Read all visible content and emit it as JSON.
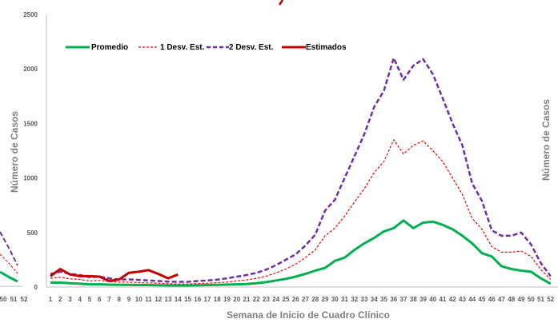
{
  "chart_data": {
    "type": "line",
    "title": "",
    "xlabel": "Semana de Inicio de Cuadro Clínico",
    "ylabel": "Número de Casos",
    "ylim": [
      0,
      2500
    ],
    "y_ticks": [
      "0",
      "500",
      "1000",
      "1500",
      "2000",
      "2500"
    ],
    "x_ticks": [
      "1",
      "2",
      "3",
      "4",
      "5",
      "6",
      "7",
      "8",
      "9",
      "10",
      "11",
      "12",
      "13",
      "14",
      "15",
      "16",
      "17",
      "18",
      "19",
      "20",
      "21",
      "22",
      "23",
      "24",
      "25",
      "26",
      "27",
      "28",
      "29",
      "30",
      "31",
      "32",
      "33",
      "34",
      "35",
      "36",
      "37",
      "38",
      "39",
      "40",
      "41",
      "42",
      "43",
      "44",
      "45",
      "46",
      "47",
      "48",
      "49",
      "50",
      "51",
      "52"
    ],
    "left_partial_ticks": [
      "50",
      "51",
      "52"
    ],
    "grid": false,
    "legend_position": "top-left",
    "series": [
      {
        "name": "Promedio",
        "color": "#00b050",
        "style": "solid",
        "values": [
          40,
          40,
          35,
          30,
          25,
          25,
          22,
          20,
          20,
          18,
          18,
          17,
          15,
          15,
          15,
          17,
          18,
          20,
          22,
          25,
          28,
          35,
          45,
          60,
          75,
          95,
          120,
          150,
          175,
          240,
          270,
          340,
          400,
          450,
          510,
          540,
          610,
          540,
          590,
          600,
          570,
          530,
          470,
          400,
          310,
          280,
          190,
          165,
          150,
          140,
          80,
          30
        ]
      },
      {
        "name": "1 Desv. Est.",
        "color": "#ff0000",
        "style": "dashed",
        "values": [
          80,
          90,
          75,
          70,
          55,
          60,
          50,
          45,
          45,
          40,
          38,
          35,
          30,
          28,
          28,
          32,
          35,
          40,
          45,
          55,
          65,
          80,
          100,
          130,
          165,
          210,
          270,
          340,
          470,
          540,
          650,
          780,
          900,
          1050,
          1150,
          1350,
          1220,
          1300,
          1340,
          1250,
          1150,
          1000,
          850,
          630,
          530,
          370,
          320,
          320,
          330,
          280,
          160,
          70
        ]
      },
      {
        "name": "2 Desv. Est.",
        "color": "#7030a0",
        "style": "dashed",
        "values": [
          120,
          140,
          120,
          110,
          90,
          95,
          80,
          70,
          70,
          65,
          60,
          55,
          50,
          48,
          48,
          55,
          60,
          68,
          80,
          95,
          110,
          130,
          160,
          200,
          250,
          300,
          380,
          480,
          700,
          800,
          1000,
          1200,
          1400,
          1650,
          1800,
          2100,
          1900,
          2030,
          2090,
          1950,
          1730,
          1500,
          1300,
          950,
          790,
          520,
          470,
          470,
          500,
          390,
          220,
          100
        ]
      },
      {
        "name": "Estimados",
        "color": "#c00000",
        "style": "solid",
        "values": [
          100,
          165,
          115,
          100,
          100,
          95,
          55,
          70,
          130,
          140,
          155,
          120,
          80,
          115
        ]
      }
    ]
  }
}
